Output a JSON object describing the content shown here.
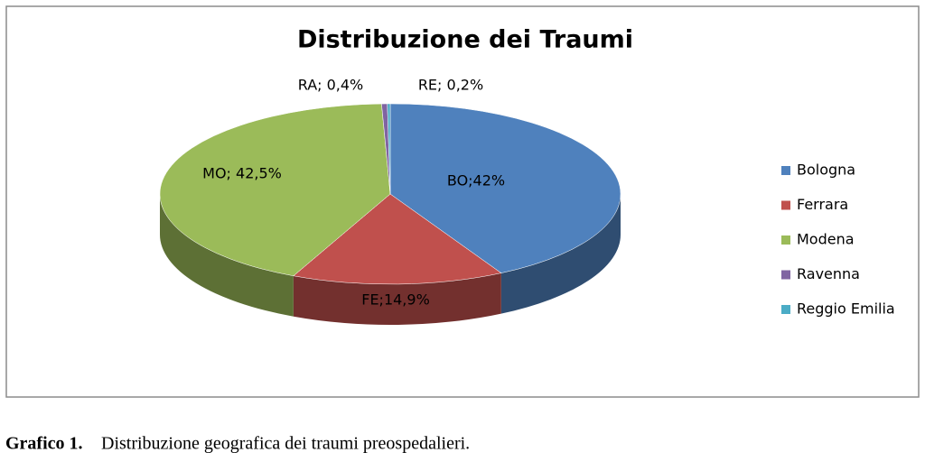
{
  "chart_data": {
    "type": "pie",
    "title": "Distribuzione dei Traumi",
    "categories": [
      "Bologna",
      "Ferrara",
      "Modena",
      "Ravenna",
      "Reggio  Emilia"
    ],
    "values": [
      42,
      14.9,
      42.5,
      0.4,
      0.2
    ],
    "value_labels": [
      "BO;42%",
      "FE;14,9%",
      "MO; 42,5%",
      "RA; 0,4%",
      "RE; 0,2%"
    ],
    "colors": [
      "#4f81bd",
      "#c0504d",
      "#9bbb59",
      "#8064a2",
      "#4bacc6"
    ],
    "legend": "right"
  },
  "caption": {
    "label": "Grafico 1.",
    "text": "Distribuzione geografica dei traumi preospedalieri."
  }
}
